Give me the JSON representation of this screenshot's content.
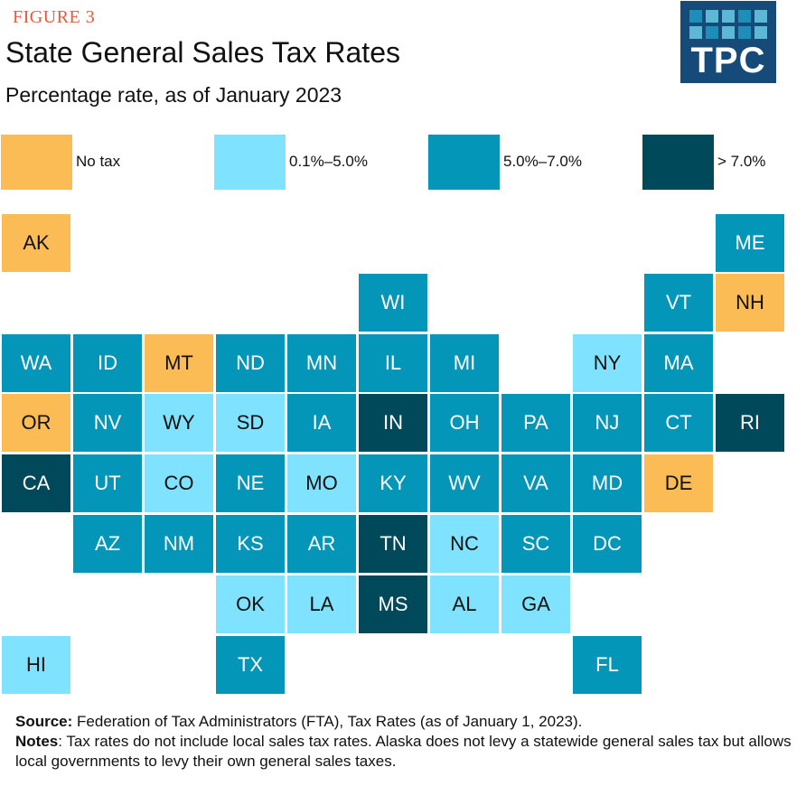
{
  "header": {
    "figure_label": "FIGURE 3",
    "title": "State General Sales Tax Rates",
    "subtitle": "Percentage rate, as of January 2023",
    "logo_text": "TPC"
  },
  "colors": {
    "none": "#FBBC55",
    "low": "#7FE2FE",
    "mid": "#0396B8",
    "high": "#00495A"
  },
  "legend": [
    {
      "key": "none",
      "label": "No tax"
    },
    {
      "key": "low",
      "label": "0.1%–5.0%"
    },
    {
      "key": "mid",
      "label": "5.0%–7.0%"
    },
    {
      "key": "high",
      "label": "> 7.0%"
    }
  ],
  "states": [
    {
      "abbr": "AK",
      "row": 0,
      "col": 0,
      "category": "none"
    },
    {
      "abbr": "ME",
      "row": 0,
      "col": 10,
      "category": "mid"
    },
    {
      "abbr": "WI",
      "row": 1,
      "col": 5,
      "category": "mid"
    },
    {
      "abbr": "VT",
      "row": 1,
      "col": 9,
      "category": "mid"
    },
    {
      "abbr": "NH",
      "row": 1,
      "col": 10,
      "category": "none"
    },
    {
      "abbr": "WA",
      "row": 2,
      "col": 0,
      "category": "mid"
    },
    {
      "abbr": "ID",
      "row": 2,
      "col": 1,
      "category": "mid"
    },
    {
      "abbr": "MT",
      "row": 2,
      "col": 2,
      "category": "none"
    },
    {
      "abbr": "ND",
      "row": 2,
      "col": 3,
      "category": "mid"
    },
    {
      "abbr": "MN",
      "row": 2,
      "col": 4,
      "category": "mid"
    },
    {
      "abbr": "IL",
      "row": 2,
      "col": 5,
      "category": "mid"
    },
    {
      "abbr": "MI",
      "row": 2,
      "col": 6,
      "category": "mid"
    },
    {
      "abbr": "NY",
      "row": 2,
      "col": 8,
      "category": "low"
    },
    {
      "abbr": "MA",
      "row": 2,
      "col": 9,
      "category": "mid"
    },
    {
      "abbr": "OR",
      "row": 3,
      "col": 0,
      "category": "none"
    },
    {
      "abbr": "NV",
      "row": 3,
      "col": 1,
      "category": "mid"
    },
    {
      "abbr": "WY",
      "row": 3,
      "col": 2,
      "category": "low"
    },
    {
      "abbr": "SD",
      "row": 3,
      "col": 3,
      "category": "low"
    },
    {
      "abbr": "IA",
      "row": 3,
      "col": 4,
      "category": "mid"
    },
    {
      "abbr": "IN",
      "row": 3,
      "col": 5,
      "category": "high"
    },
    {
      "abbr": "OH",
      "row": 3,
      "col": 6,
      "category": "mid"
    },
    {
      "abbr": "PA",
      "row": 3,
      "col": 7,
      "category": "mid"
    },
    {
      "abbr": "NJ",
      "row": 3,
      "col": 8,
      "category": "mid"
    },
    {
      "abbr": "CT",
      "row": 3,
      "col": 9,
      "category": "mid"
    },
    {
      "abbr": "RI",
      "row": 3,
      "col": 10,
      "category": "high"
    },
    {
      "abbr": "CA",
      "row": 4,
      "col": 0,
      "category": "high"
    },
    {
      "abbr": "UT",
      "row": 4,
      "col": 1,
      "category": "mid"
    },
    {
      "abbr": "CO",
      "row": 4,
      "col": 2,
      "category": "low"
    },
    {
      "abbr": "NE",
      "row": 4,
      "col": 3,
      "category": "mid"
    },
    {
      "abbr": "MO",
      "row": 4,
      "col": 4,
      "category": "low"
    },
    {
      "abbr": "KY",
      "row": 4,
      "col": 5,
      "category": "mid"
    },
    {
      "abbr": "WV",
      "row": 4,
      "col": 6,
      "category": "mid"
    },
    {
      "abbr": "VA",
      "row": 4,
      "col": 7,
      "category": "mid"
    },
    {
      "abbr": "MD",
      "row": 4,
      "col": 8,
      "category": "mid"
    },
    {
      "abbr": "DE",
      "row": 4,
      "col": 9,
      "category": "none"
    },
    {
      "abbr": "AZ",
      "row": 5,
      "col": 1,
      "category": "mid"
    },
    {
      "abbr": "NM",
      "row": 5,
      "col": 2,
      "category": "mid"
    },
    {
      "abbr": "KS",
      "row": 5,
      "col": 3,
      "category": "mid"
    },
    {
      "abbr": "AR",
      "row": 5,
      "col": 4,
      "category": "mid"
    },
    {
      "abbr": "TN",
      "row": 5,
      "col": 5,
      "category": "high"
    },
    {
      "abbr": "NC",
      "row": 5,
      "col": 6,
      "category": "low"
    },
    {
      "abbr": "SC",
      "row": 5,
      "col": 7,
      "category": "mid"
    },
    {
      "abbr": "DC",
      "row": 5,
      "col": 8,
      "category": "mid"
    },
    {
      "abbr": "OK",
      "row": 6,
      "col": 3,
      "category": "low"
    },
    {
      "abbr": "LA",
      "row": 6,
      "col": 4,
      "category": "low"
    },
    {
      "abbr": "MS",
      "row": 6,
      "col": 5,
      "category": "high"
    },
    {
      "abbr": "AL",
      "row": 6,
      "col": 6,
      "category": "low"
    },
    {
      "abbr": "GA",
      "row": 6,
      "col": 7,
      "category": "low"
    },
    {
      "abbr": "HI",
      "row": 7,
      "col": 0,
      "category": "low"
    },
    {
      "abbr": "TX",
      "row": 7,
      "col": 3,
      "category": "mid"
    },
    {
      "abbr": "FL",
      "row": 7,
      "col": 8,
      "category": "mid"
    }
  ],
  "footer": {
    "source_label": "Source:",
    "source_text": " Federation of Tax Administrators (FTA), Tax Rates (as of January 1, 2023).",
    "notes_label": "Notes",
    "notes_text": ": Tax rates do not include local sales tax rates. Alaska does not levy a statewide general sales tax but allows local governments to levy their own general sales taxes."
  }
}
